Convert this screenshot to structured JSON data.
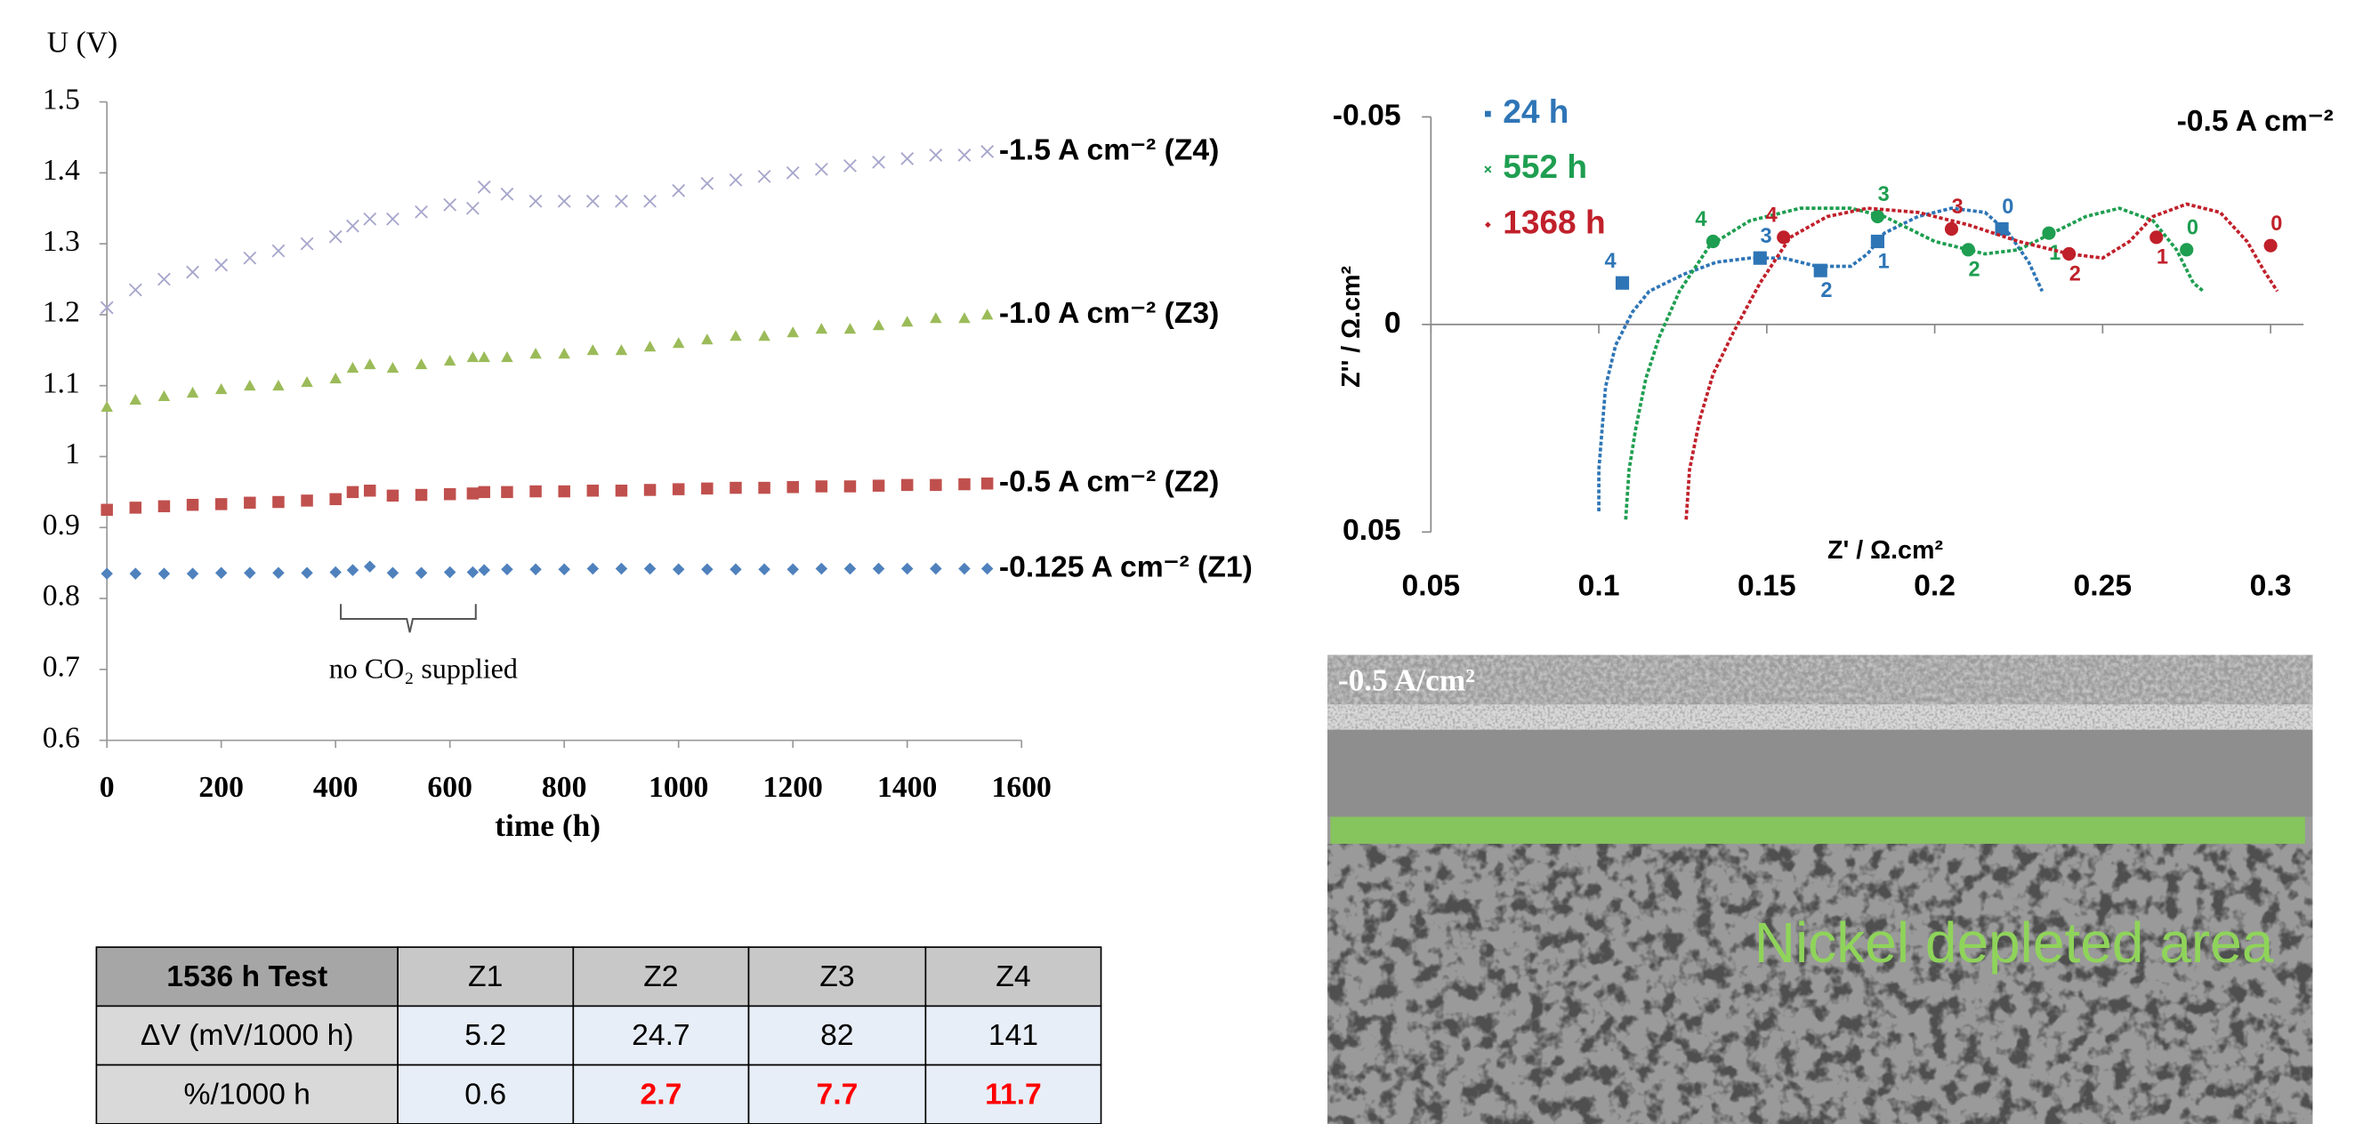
{
  "chart_data": [
    {
      "type": "scatter",
      "y_label": "U (V)",
      "x_label": "time (h)",
      "annotation": "no CO₂ supplied",
      "x": [
        0,
        50,
        100,
        150,
        200,
        250,
        300,
        350,
        400,
        430,
        460,
        500,
        550,
        600,
        640,
        660,
        700,
        750,
        800,
        850,
        900,
        950,
        1000,
        1050,
        1100,
        1150,
        1200,
        1250,
        1300,
        1350,
        1400,
        1450,
        1500,
        1540
      ],
      "series": [
        {
          "name": "-1.5 A cm⁻² (Z4)",
          "color": "#a6a6cc",
          "marker": "x",
          "values": [
            1.21,
            1.235,
            1.25,
            1.26,
            1.27,
            1.28,
            1.29,
            1.3,
            1.31,
            1.325,
            1.335,
            1.335,
            1.345,
            1.355,
            1.35,
            1.38,
            1.37,
            1.36,
            1.36,
            1.36,
            1.36,
            1.36,
            1.375,
            1.385,
            1.39,
            1.395,
            1.4,
            1.405,
            1.41,
            1.415,
            1.42,
            1.425,
            1.425,
            1.43
          ]
        },
        {
          "name": "-1.0 A cm⁻² (Z3)",
          "color": "#9bbb59",
          "marker": "triangle",
          "values": [
            1.07,
            1.08,
            1.085,
            1.09,
            1.095,
            1.1,
            1.1,
            1.105,
            1.11,
            1.125,
            1.13,
            1.125,
            1.13,
            1.135,
            1.14,
            1.14,
            1.14,
            1.145,
            1.145,
            1.15,
            1.15,
            1.155,
            1.16,
            1.165,
            1.17,
            1.17,
            1.175,
            1.18,
            1.18,
            1.185,
            1.19,
            1.195,
            1.195,
            1.2
          ]
        },
        {
          "name": "-0.5 A cm⁻² (Z2)",
          "color": "#c0504d",
          "marker": "square",
          "values": [
            0.925,
            0.928,
            0.93,
            0.932,
            0.933,
            0.935,
            0.936,
            0.938,
            0.94,
            0.95,
            0.952,
            0.945,
            0.946,
            0.947,
            0.948,
            0.95,
            0.95,
            0.951,
            0.951,
            0.952,
            0.952,
            0.953,
            0.954,
            0.955,
            0.956,
            0.956,
            0.957,
            0.958,
            0.958,
            0.959,
            0.96,
            0.96,
            0.961,
            0.962
          ]
        },
        {
          "name": "-0.125 A cm⁻² (Z1)",
          "color": "#4f81bd",
          "marker": "diamond",
          "values": [
            0.835,
            0.835,
            0.835,
            0.835,
            0.836,
            0.836,
            0.836,
            0.836,
            0.837,
            0.84,
            0.845,
            0.836,
            0.836,
            0.837,
            0.837,
            0.84,
            0.841,
            0.841,
            0.841,
            0.842,
            0.842,
            0.842,
            0.841,
            0.841,
            0.841,
            0.841,
            0.841,
            0.842,
            0.842,
            0.842,
            0.842,
            0.842,
            0.842,
            0.842
          ]
        }
      ],
      "xlim": [
        0,
        1600
      ],
      "xticks": [
        0,
        200,
        400,
        600,
        800,
        1000,
        1200,
        1400,
        1600
      ],
      "ylim": [
        0.6,
        1.5
      ],
      "yticks": [
        0.6,
        0.7,
        0.8,
        0.9,
        1,
        1.1,
        1.2,
        1.3,
        1.4,
        1.5
      ],
      "grid": false
    },
    {
      "type": "line",
      "title": "-0.5 A cm⁻²",
      "x_label": "Z' / Ω.cm²",
      "y_label": "Z'' / Ω.cm²",
      "series": [
        {
          "name": "24 h",
          "color": "#2e75b6",
          "marker": "square",
          "x": [
            0.1,
            0.1,
            0.101,
            0.102,
            0.105,
            0.11,
            0.115,
            0.125,
            0.135,
            0.145,
            0.155,
            0.165,
            0.175,
            0.18,
            0.185,
            0.195,
            0.205,
            0.215,
            0.222,
            0.228,
            0.232
          ],
          "values": [
            0.045,
            0.035,
            0.025,
            0.015,
            0.005,
            -0.003,
            -0.008,
            -0.012,
            -0.015,
            -0.016,
            -0.016,
            -0.014,
            -0.014,
            -0.017,
            -0.022,
            -0.026,
            -0.028,
            -0.027,
            -0.022,
            -0.015,
            -0.008
          ],
          "decades": [
            {
              "label": "0",
              "x": 0.22,
              "y": -0.023
            },
            {
              "label": "1",
              "x": 0.183,
              "y": -0.02
            },
            {
              "label": "2",
              "x": 0.166,
              "y": -0.013
            },
            {
              "label": "3",
              "x": 0.148,
              "y": -0.016
            },
            {
              "label": "4",
              "x": 0.107,
              "y": -0.01
            }
          ]
        },
        {
          "name": "552 h",
          "color": "#1e9e50",
          "marker": "x",
          "x": [
            0.108,
            0.109,
            0.111,
            0.114,
            0.118,
            0.124,
            0.133,
            0.145,
            0.16,
            0.175,
            0.185,
            0.2,
            0.215,
            0.225,
            0.235,
            0.245,
            0.255,
            0.265,
            0.272,
            0.277,
            0.28
          ],
          "values": [
            0.047,
            0.035,
            0.025,
            0.013,
            0.003,
            -0.008,
            -0.019,
            -0.025,
            -0.028,
            -0.028,
            -0.026,
            -0.02,
            -0.017,
            -0.018,
            -0.022,
            -0.026,
            -0.028,
            -0.025,
            -0.018,
            -0.01,
            -0.008
          ],
          "decades": [
            {
              "label": "0",
              "x": 0.275,
              "y": -0.018
            },
            {
              "label": "1",
              "x": 0.234,
              "y": -0.022
            },
            {
              "label": "2",
              "x": 0.21,
              "y": -0.018
            },
            {
              "label": "3",
              "x": 0.183,
              "y": -0.026
            },
            {
              "label": "4",
              "x": 0.134,
              "y": -0.02
            }
          ]
        },
        {
          "name": "1368 h",
          "color": "#c0202a",
          "marker": "diamond",
          "x": [
            0.126,
            0.127,
            0.13,
            0.134,
            0.14,
            0.148,
            0.157,
            0.168,
            0.18,
            0.195,
            0.21,
            0.225,
            0.24,
            0.25,
            0.258,
            0.265,
            0.275,
            0.285,
            0.293,
            0.298,
            0.302
          ],
          "values": [
            0.047,
            0.035,
            0.023,
            0.012,
            0.002,
            -0.01,
            -0.021,
            -0.026,
            -0.028,
            -0.027,
            -0.024,
            -0.02,
            -0.017,
            -0.016,
            -0.02,
            -0.026,
            -0.029,
            -0.027,
            -0.02,
            -0.013,
            -0.008
          ],
          "decades": [
            {
              "label": "0",
              "x": 0.3,
              "y": -0.019
            },
            {
              "label": "1",
              "x": 0.266,
              "y": -0.021
            },
            {
              "label": "2",
              "x": 0.24,
              "y": -0.017
            },
            {
              "label": "3",
              "x": 0.205,
              "y": -0.023
            },
            {
              "label": "4",
              "x": 0.155,
              "y": -0.021
            }
          ]
        }
      ],
      "xlim": [
        0.05,
        0.3
      ],
      "xticks": [
        0.05,
        0.1,
        0.15,
        0.2,
        0.25,
        0.3
      ],
      "ylim": [
        0.05,
        -0.05
      ],
      "yticks": [
        -0.05,
        0,
        0.05
      ]
    }
  ],
  "table": {
    "rows": [
      [
        "1536 h Test",
        "Z1",
        "Z2",
        "Z3",
        "Z4"
      ],
      [
        "ΔV (mV/1000 h)",
        5.2,
        24.7,
        82,
        141
      ],
      [
        "%/1000 h",
        0.6,
        2.7,
        7.7,
        11.7
      ]
    ]
  },
  "image": {
    "label": "-0.5 A/cm²",
    "annotation": "Nickel depleted area"
  }
}
